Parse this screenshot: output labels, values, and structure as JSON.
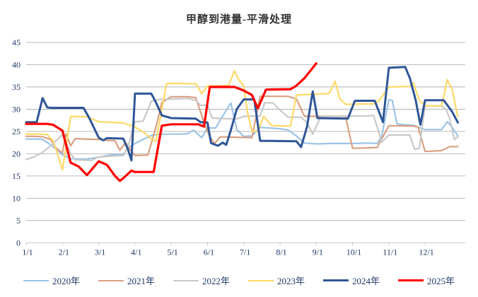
{
  "title": "甲醇到港量-平滑处理",
  "axis": {
    "label_color": "#1F3864",
    "grid_color": "#A6A6A6",
    "axis_line_color": "#BFBFBF"
  },
  "chart_data": {
    "type": "line",
    "title": "甲醇到港量-平滑处理",
    "xlabel": "",
    "ylabel": "",
    "ylim": [
      0,
      45
    ],
    "y_ticks": [
      0,
      5,
      10,
      15,
      20,
      25,
      30,
      35,
      40,
      45
    ],
    "x_tick_labels": [
      "1/1",
      "2/1",
      "3/1",
      "4/1",
      "5/1",
      "6/1",
      "7/1",
      "8/1",
      "9/1",
      "10/1",
      "11/1",
      "12/1"
    ],
    "grid": "horizontal",
    "legend_position": "bottom",
    "series": [
      {
        "name": "2020年",
        "color": "#9DC3E6",
        "width": 2.2,
        "points": [
          [
            "1/1",
            23.3
          ],
          [
            "1/8",
            23.3
          ],
          [
            "1/15",
            23.2
          ],
          [
            "1/22",
            22.0
          ],
          [
            "2/1",
            19.8
          ],
          [
            "2/8",
            18.9
          ],
          [
            "2/15",
            18.8
          ],
          [
            "2/22",
            18.8
          ],
          [
            "3/1",
            19.2
          ],
          [
            "3/8",
            19.6
          ],
          [
            "3/15",
            19.8
          ],
          [
            "3/22",
            19.8
          ],
          [
            "3/26",
            21.3
          ],
          [
            "4/1",
            22.3
          ],
          [
            "4/8",
            23.2
          ],
          [
            "4/15",
            24.1
          ],
          [
            "4/22",
            24.4
          ],
          [
            "5/8",
            24.4
          ],
          [
            "5/15",
            24.5
          ],
          [
            "5/20",
            25.3
          ],
          [
            "5/27",
            23.6
          ],
          [
            "6/1",
            25.8
          ],
          [
            "6/8",
            25.8
          ],
          [
            "6/15",
            28.9
          ],
          [
            "6/21",
            31.4
          ],
          [
            "6/26",
            25.5
          ],
          [
            "7/1",
            23.9
          ],
          [
            "7/8",
            24.0
          ],
          [
            "7/15",
            25.9
          ],
          [
            "7/22",
            25.8
          ],
          [
            "8/1",
            25.6
          ],
          [
            "8/8",
            25.3
          ],
          [
            "8/15",
            24.0
          ],
          [
            "8/22",
            22.4
          ],
          [
            "9/1",
            22.2
          ],
          [
            "9/15",
            22.3
          ],
          [
            "10/1",
            22.3
          ],
          [
            "10/15",
            22.4
          ],
          [
            "10/22",
            22.3
          ],
          [
            "10/26",
            24.0
          ],
          [
            "11/1",
            32.1
          ],
          [
            "11/4",
            32.0
          ],
          [
            "11/8",
            26.7
          ],
          [
            "11/15",
            26.5
          ],
          [
            "11/22",
            26.4
          ],
          [
            "12/1",
            25.4
          ],
          [
            "12/15",
            25.4
          ],
          [
            "12/20",
            27.2
          ],
          [
            "12/24",
            26.0
          ],
          [
            "12/29",
            24.0
          ]
        ]
      },
      {
        "name": "2021年",
        "color": "#D9A082",
        "width": 2.2,
        "points": [
          [
            "1/1",
            23.9
          ],
          [
            "1/8",
            23.9
          ],
          [
            "1/15",
            23.8
          ],
          [
            "1/22",
            23.2
          ],
          [
            "1/26",
            21.4
          ],
          [
            "2/1",
            20.2
          ],
          [
            "2/4",
            24.5
          ],
          [
            "2/8",
            21.8
          ],
          [
            "2/12",
            23.4
          ],
          [
            "2/19",
            23.3
          ],
          [
            "3/1",
            23.2
          ],
          [
            "3/8",
            23.0
          ],
          [
            "3/15",
            22.9
          ],
          [
            "3/19",
            20.8
          ],
          [
            "3/24",
            22.5
          ],
          [
            "3/29",
            20.5
          ],
          [
            "4/1",
            19.6
          ],
          [
            "4/12",
            19.7
          ],
          [
            "4/19",
            26.0
          ],
          [
            "4/24",
            31.5
          ],
          [
            "5/1",
            32.8
          ],
          [
            "5/15",
            32.8
          ],
          [
            "5/22",
            32.6
          ],
          [
            "5/29",
            27.0
          ],
          [
            "6/3",
            23.8
          ],
          [
            "6/7",
            22.3
          ],
          [
            "6/12",
            23.8
          ],
          [
            "6/26",
            23.7
          ],
          [
            "7/8",
            23.6
          ],
          [
            "7/15",
            32.9
          ],
          [
            "8/8",
            32.9
          ],
          [
            "8/15",
            32.3
          ],
          [
            "8/22",
            28.4
          ],
          [
            "9/26",
            28.4
          ],
          [
            "10/1",
            21.2
          ],
          [
            "10/22",
            21.4
          ],
          [
            "11/1",
            26.3
          ],
          [
            "11/22",
            26.2
          ],
          [
            "11/26",
            26.0
          ],
          [
            "12/1",
            20.5
          ],
          [
            "12/15",
            20.7
          ],
          [
            "12/22",
            21.6
          ],
          [
            "12/29",
            21.6
          ]
        ]
      },
      {
        "name": "2022年",
        "color": "#C9C9C9",
        "width": 2.2,
        "points": [
          [
            "1/1",
            18.7
          ],
          [
            "1/8",
            19.3
          ],
          [
            "1/15",
            20.3
          ],
          [
            "1/22",
            21.8
          ],
          [
            "2/1",
            24.3
          ],
          [
            "2/5",
            22.0
          ],
          [
            "2/8",
            20.0
          ],
          [
            "2/12",
            18.6
          ],
          [
            "2/26",
            18.5
          ],
          [
            "3/1",
            19.3
          ],
          [
            "3/22",
            19.6
          ],
          [
            "3/26",
            21.5
          ],
          [
            "4/1",
            27.2
          ],
          [
            "4/8",
            27.3
          ],
          [
            "4/15",
            31.8
          ],
          [
            "4/22",
            32.2
          ],
          [
            "5/15",
            32.4
          ],
          [
            "5/22",
            32.0
          ],
          [
            "5/26",
            30.9
          ],
          [
            "6/1",
            30.9
          ],
          [
            "6/5",
            28.0
          ],
          [
            "6/26",
            27.8
          ],
          [
            "7/1",
            28.4
          ],
          [
            "7/15",
            28.5
          ],
          [
            "7/19",
            31.5
          ],
          [
            "7/26",
            31.4
          ],
          [
            "8/1",
            29.8
          ],
          [
            "8/8",
            28.2
          ],
          [
            "8/19",
            28.2
          ],
          [
            "8/24",
            27.0
          ],
          [
            "8/29",
            24.4
          ],
          [
            "9/5",
            28.4
          ],
          [
            "10/15",
            28.5
          ],
          [
            "10/19",
            28.6
          ],
          [
            "10/26",
            22.6
          ],
          [
            "11/1",
            24.2
          ],
          [
            "11/19",
            24.2
          ],
          [
            "11/23",
            21.0
          ],
          [
            "11/27",
            21.2
          ],
          [
            "12/1",
            30.8
          ],
          [
            "12/15",
            30.7
          ],
          [
            "12/19",
            30.0
          ],
          [
            "12/22",
            27.9
          ],
          [
            "12/26",
            23.2
          ],
          [
            "12/29",
            23.8
          ]
        ]
      },
      {
        "name": "2023年",
        "color": "#FFD966",
        "width": 2.2,
        "points": [
          [
            "1/1",
            24.4
          ],
          [
            "1/12",
            24.4
          ],
          [
            "1/19",
            24.3
          ],
          [
            "1/24",
            22.9
          ],
          [
            "1/29",
            19.0
          ],
          [
            "2/1",
            16.4
          ],
          [
            "2/5",
            23.0
          ],
          [
            "2/8",
            28.4
          ],
          [
            "2/22",
            28.3
          ],
          [
            "3/1",
            27.2
          ],
          [
            "3/22",
            26.9
          ],
          [
            "4/1",
            26.0
          ],
          [
            "4/8",
            24.9
          ],
          [
            "4/15",
            23.4
          ],
          [
            "4/19",
            22.8
          ],
          [
            "4/24",
            30.0
          ],
          [
            "4/28",
            35.7
          ],
          [
            "5/1",
            35.8
          ],
          [
            "5/22",
            35.7
          ],
          [
            "5/27",
            33.5
          ],
          [
            "6/1",
            35.2
          ],
          [
            "6/19",
            35.3
          ],
          [
            "6/24",
            38.6
          ],
          [
            "6/28",
            36.5
          ],
          [
            "7/1",
            35.3
          ],
          [
            "7/4",
            29.5
          ],
          [
            "7/8",
            25.1
          ],
          [
            "7/13",
            25.0
          ],
          [
            "7/18",
            28.4
          ],
          [
            "7/25",
            26.3
          ],
          [
            "8/10",
            26.2
          ],
          [
            "8/15",
            33.2
          ],
          [
            "9/12",
            33.5
          ],
          [
            "9/17",
            36.3
          ],
          [
            "9/21",
            32.4
          ],
          [
            "9/26",
            31.1
          ],
          [
            "10/19",
            31.2
          ],
          [
            "10/24",
            32.0
          ],
          [
            "11/1",
            35.0
          ],
          [
            "11/19",
            35.1
          ],
          [
            "11/22",
            35.9
          ],
          [
            "11/27",
            32.0
          ],
          [
            "12/1",
            30.8
          ],
          [
            "12/15",
            30.7
          ],
          [
            "12/20",
            36.6
          ],
          [
            "12/24",
            34.5
          ],
          [
            "12/29",
            28.3
          ]
        ]
      },
      {
        "name": "2024年",
        "color": "#2F5597",
        "width": 3,
        "points": [
          [
            "1/1",
            27.1
          ],
          [
            "1/10",
            27.1
          ],
          [
            "1/15",
            32.5
          ],
          [
            "1/19",
            30.4
          ],
          [
            "1/22",
            30.3
          ],
          [
            "2/19",
            30.3
          ],
          [
            "2/24",
            28.0
          ],
          [
            "3/1",
            23.6
          ],
          [
            "3/5",
            23.0
          ],
          [
            "3/8",
            23.5
          ],
          [
            "3/22",
            23.4
          ],
          [
            "3/26",
            21.0
          ],
          [
            "3/29",
            18.5
          ],
          [
            "4/1",
            33.5
          ],
          [
            "4/15",
            33.5
          ],
          [
            "4/19",
            31.5
          ],
          [
            "4/24",
            28.6
          ],
          [
            "5/1",
            28.0
          ],
          [
            "5/22",
            27.9
          ],
          [
            "5/26",
            27.1
          ],
          [
            "6/1",
            27.0
          ],
          [
            "6/4",
            22.4
          ],
          [
            "6/10",
            21.8
          ],
          [
            "6/14",
            22.5
          ],
          [
            "6/17",
            22.0
          ],
          [
            "6/21",
            25.3
          ],
          [
            "6/26",
            30.0
          ],
          [
            "7/1",
            32.2
          ],
          [
            "7/10",
            32.2
          ],
          [
            "7/15",
            22.9
          ],
          [
            "8/15",
            22.8
          ],
          [
            "8/19",
            21.5
          ],
          [
            "8/24",
            26.0
          ],
          [
            "8/29",
            34.0
          ],
          [
            "9/2",
            28.0
          ],
          [
            "9/28",
            27.9
          ],
          [
            "10/3",
            31.9
          ],
          [
            "10/20",
            31.9
          ],
          [
            "10/27",
            27.1
          ],
          [
            "11/1",
            39.3
          ],
          [
            "11/15",
            39.5
          ],
          [
            "11/19",
            37.0
          ],
          [
            "11/24",
            32.0
          ],
          [
            "11/28",
            26.5
          ],
          [
            "12/1",
            32.0
          ],
          [
            "12/17",
            32.0
          ],
          [
            "12/24",
            29.5
          ],
          [
            "12/29",
            27.0
          ]
        ]
      },
      {
        "name": "2025年",
        "color": "#FF0000",
        "width": 3.2,
        "points": [
          [
            "1/1",
            26.7
          ],
          [
            "1/19",
            26.7
          ],
          [
            "1/24",
            26.5
          ],
          [
            "2/1",
            25.2
          ],
          [
            "2/8",
            18.0
          ],
          [
            "2/15",
            17.1
          ],
          [
            "2/22",
            15.2
          ],
          [
            "3/1",
            18.3
          ],
          [
            "3/8",
            17.5
          ],
          [
            "3/15",
            15.0
          ],
          [
            "3/19",
            13.9
          ],
          [
            "3/22",
            14.5
          ],
          [
            "3/29",
            16.2
          ],
          [
            "4/1",
            15.9
          ],
          [
            "4/17",
            15.9
          ],
          [
            "4/24",
            26.3
          ],
          [
            "5/1",
            26.6
          ],
          [
            "5/24",
            26.6
          ],
          [
            "5/29",
            26.1
          ],
          [
            "6/3",
            35.0
          ],
          [
            "6/24",
            35.0
          ],
          [
            "7/1",
            34.2
          ],
          [
            "7/8",
            33.2
          ],
          [
            "7/13",
            30.2
          ],
          [
            "7/20",
            34.4
          ],
          [
            "8/10",
            34.5
          ],
          [
            "8/15",
            35.3
          ],
          [
            "8/22",
            37.0
          ],
          [
            "9/1",
            40.3
          ]
        ]
      }
    ]
  }
}
